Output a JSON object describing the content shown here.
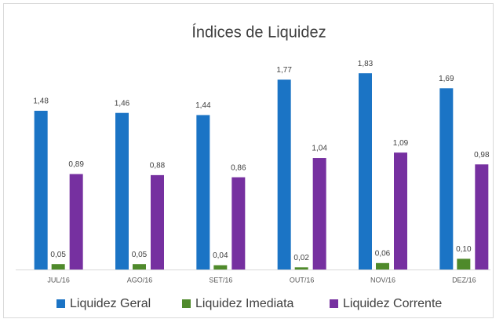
{
  "chart_data": {
    "type": "bar",
    "title": "Índices de Liquidez",
    "categories": [
      "JUL/16",
      "AGO/16",
      "SET/16",
      "OUT/16",
      "NOV/16",
      "DEZ/16"
    ],
    "series": [
      {
        "name": "Liquidez Geral",
        "color": "#1b74c5",
        "values": [
          1.48,
          1.46,
          1.44,
          1.77,
          1.83,
          1.69
        ],
        "value_labels": [
          "1,48",
          "1,46",
          "1,44",
          "1,77",
          "1,83",
          "1,69"
        ]
      },
      {
        "name": "Liquidez Imediata",
        "color": "#4f8a2b",
        "values": [
          0.05,
          0.05,
          0.04,
          0.02,
          0.06,
          0.1
        ],
        "value_labels": [
          "0,05",
          "0,05",
          "0,04",
          "0,02",
          "0,06",
          "0,10"
        ]
      },
      {
        "name": "Liquidez Corrente",
        "color": "#7630a0",
        "values": [
          0.89,
          0.88,
          0.86,
          1.04,
          1.09,
          0.98
        ],
        "value_labels": [
          "0,89",
          "0,88",
          "0,86",
          "1,04",
          "1,09",
          "0,98"
        ]
      }
    ],
    "ylim": [
      0,
      2
    ],
    "legend": "bottom"
  }
}
